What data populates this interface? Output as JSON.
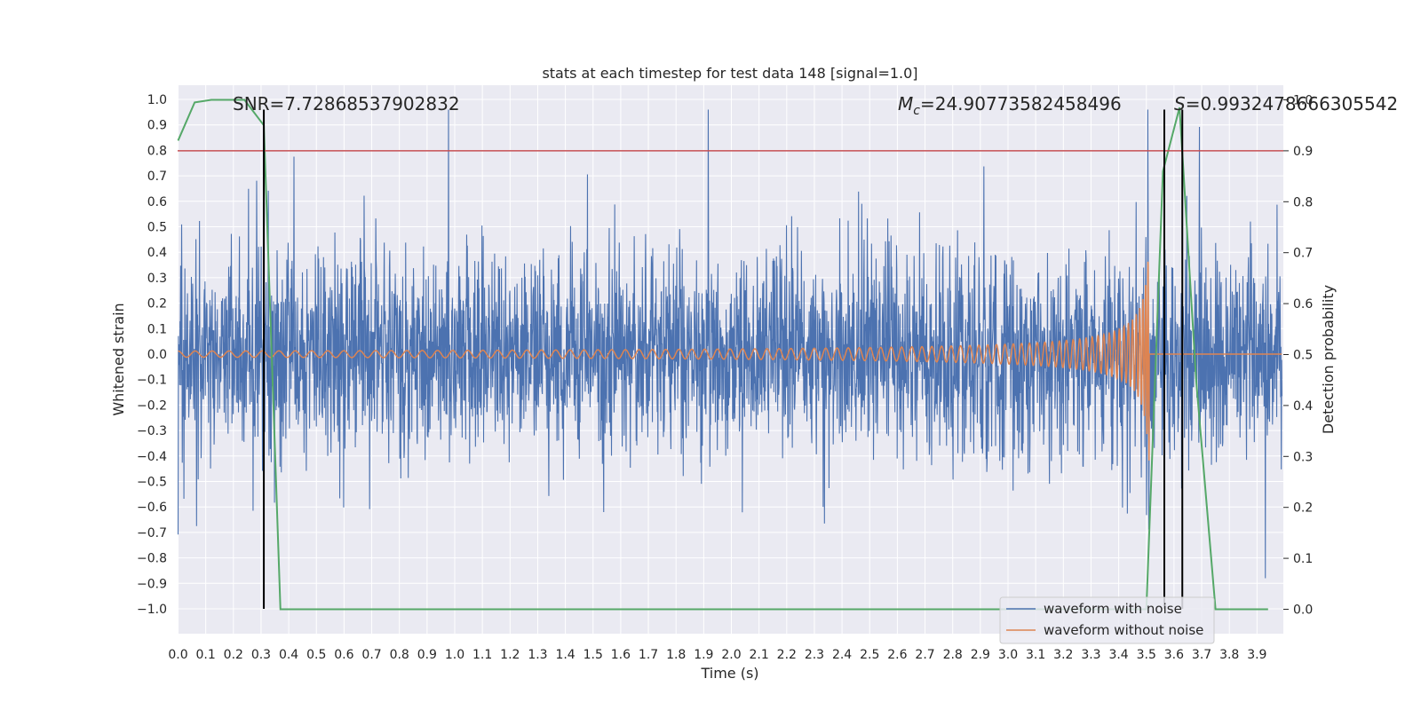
{
  "chart_data": {
    "type": "line",
    "title": "stats at each timestep for test data 148 [signal=1.0]",
    "xlabel": "Time (s)",
    "ylabel_left": "Whitened strain",
    "ylabel_right": "Detection probability",
    "xlim": [
      0.0,
      4.0
    ],
    "ylim_left": [
      -1.1,
      1.06
    ],
    "ylim_right": [
      -0.05,
      1.0
    ],
    "xticks": [
      "0.0",
      "0.1",
      "0.2",
      "0.3",
      "0.4",
      "0.5",
      "0.6",
      "0.7",
      "0.8",
      "0.9",
      "1.0",
      "1.1",
      "1.2",
      "1.3",
      "1.4",
      "1.5",
      "1.6",
      "1.7",
      "1.8",
      "1.9",
      "2.0",
      "2.1",
      "2.2",
      "2.3",
      "2.4",
      "2.5",
      "2.6",
      "2.7",
      "2.8",
      "2.9",
      "3.0",
      "3.1",
      "3.2",
      "3.3",
      "3.4",
      "3.5",
      "3.6",
      "3.7",
      "3.8",
      "3.9"
    ],
    "yticks_left": [
      "1.0",
      "0.9",
      "0.8",
      "0.7",
      "0.6",
      "0.5",
      "0.4",
      "0.3",
      "0.2",
      "0.1",
      "0.0",
      "−0.1",
      "−0.2",
      "−0.3",
      "−0.4",
      "−0.5",
      "−0.6",
      "−0.7",
      "−0.8",
      "−0.9",
      "−1.0"
    ],
    "yticks_right": [
      "1.0",
      "0.9",
      "0.8",
      "0.7",
      "0.6",
      "0.5",
      "0.4",
      "0.3",
      "0.2",
      "0.1",
      "0.0"
    ],
    "grid": true,
    "legend_position": "bottom-right",
    "series": [
      {
        "name": "waveform with noise",
        "color": "#4c72b0",
        "axis": "left",
        "description": "whitened noisy strain, approx. amplitude 0.3-0.9"
      },
      {
        "name": "waveform without noise",
        "color": "#dd8452",
        "axis": "left",
        "description": "chirp waveform, amplitude growing to ~0.4 near t=3.5 s, then 0"
      }
    ],
    "detection_probability": {
      "color": "#55a868",
      "axis": "right",
      "x": [
        0.0,
        0.06,
        0.12,
        0.18,
        0.24,
        0.31,
        0.37,
        3.5,
        3.56,
        3.62,
        3.68,
        3.75,
        3.94
      ],
      "y": [
        0.92,
        0.995,
        1.0,
        1.0,
        1.0,
        0.95,
        0.0,
        0.0,
        0.86,
        0.985,
        0.45,
        0.0,
        0.0
      ]
    },
    "threshold_line": {
      "color": "#c44e52",
      "axis": "right",
      "y": 0.9
    },
    "vertical_lines": [
      {
        "x": 0.31,
        "color": "#000000",
        "y_from": -1.0,
        "y_to": 0.96
      },
      {
        "x": 3.565,
        "color": "#000000",
        "y_from": -1.0,
        "y_to": 0.96
      },
      {
        "x": 3.63,
        "color": "#000000",
        "y_from": -1.0,
        "y_to": 0.96
      }
    ],
    "annotations": [
      {
        "id": "snr",
        "text": "SNR=7.72868537902832",
        "x": 0.2,
        "y": 0.98
      },
      {
        "id": "mc",
        "text": "=24.90773582458496",
        "symbol": "M",
        "subscript": "c",
        "x": 2.6,
        "y": 0.98
      },
      {
        "id": "s",
        "text": "=0.9932478666305542",
        "symbol": "S",
        "x": 3.6,
        "y": 0.98
      }
    ]
  }
}
